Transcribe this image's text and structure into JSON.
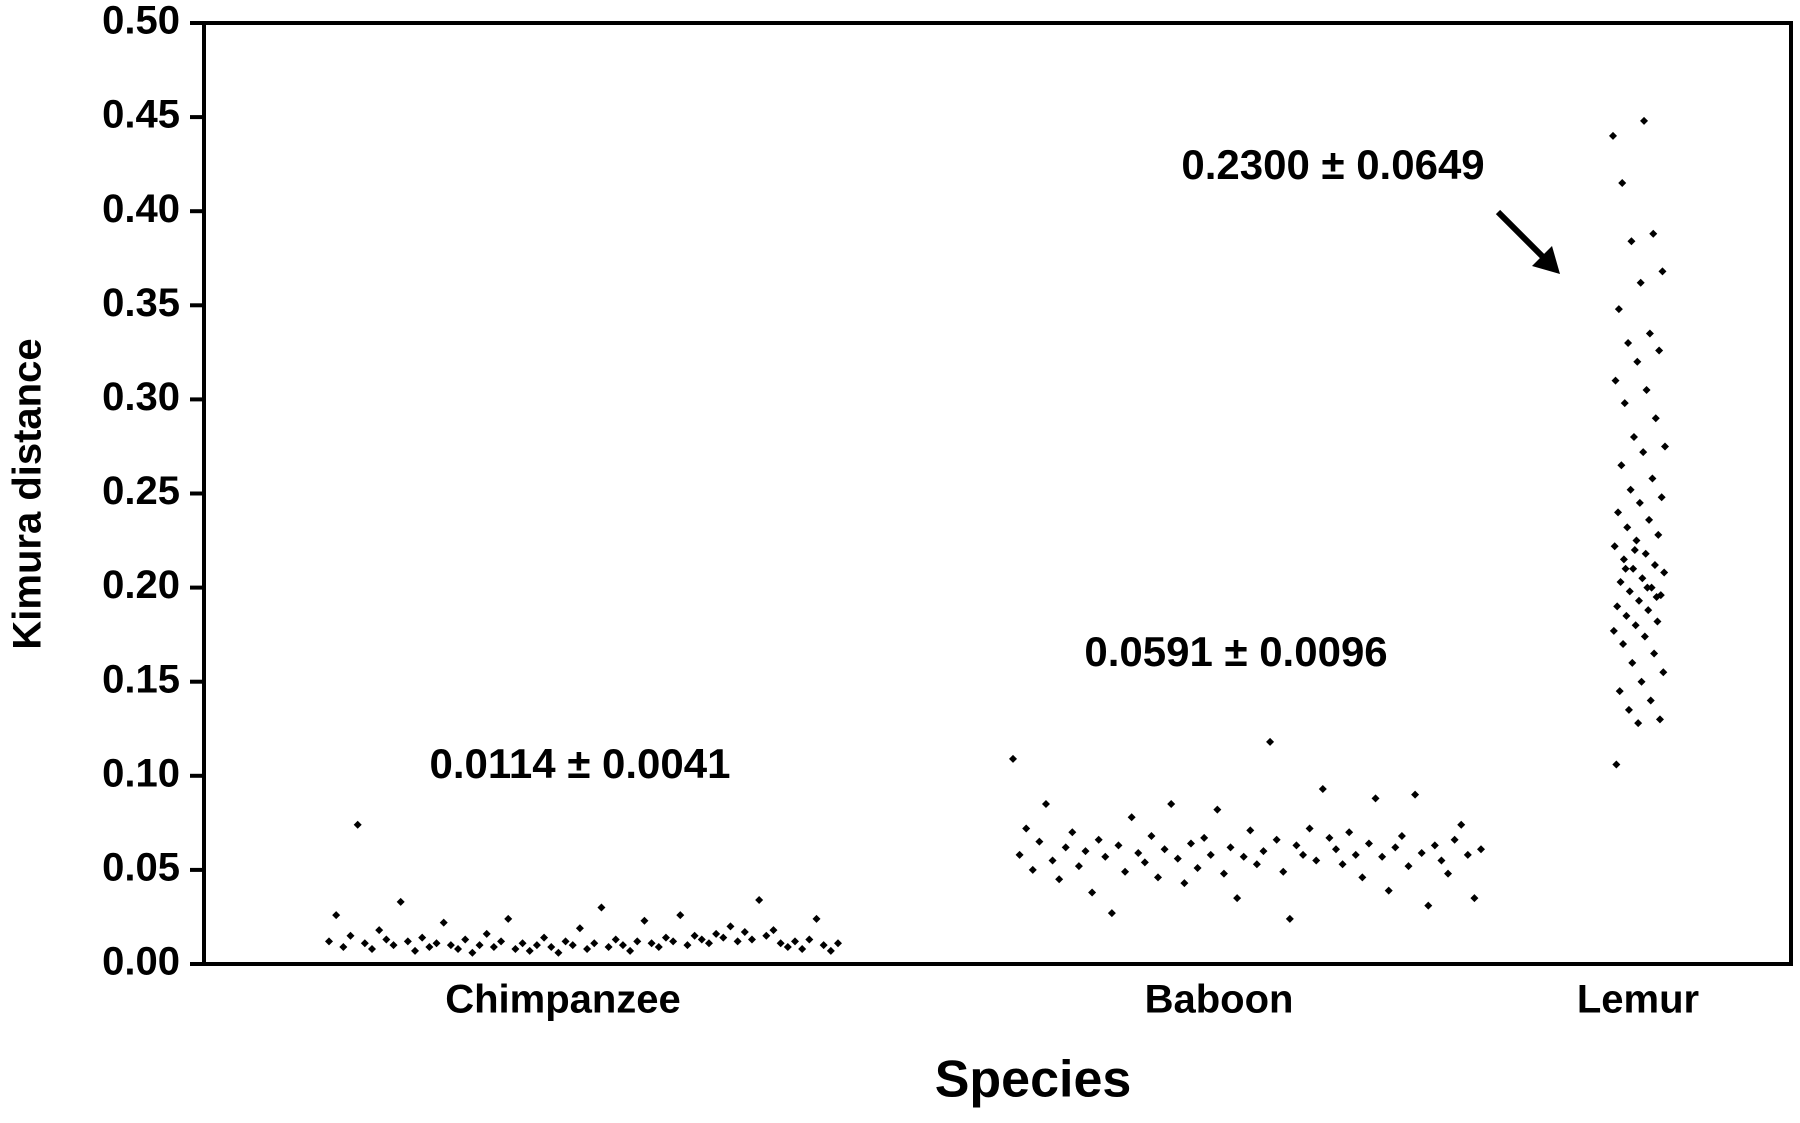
{
  "chart_data": {
    "type": "strip",
    "x_label": "Species",
    "y_label": "Kimura distance",
    "categories": [
      "Chimpanzee",
      "Baboon",
      "Lemur"
    ],
    "color": "#000000",
    "ylim": [
      0,
      0.5
    ],
    "yticks": [
      {
        "value": 0,
        "label": "0.00"
      },
      {
        "value": 0.05,
        "label": "0.05"
      },
      {
        "value": 0.1,
        "label": "0.10"
      },
      {
        "value": 0.15,
        "label": "0.15"
      },
      {
        "value": 0.2,
        "label": "0.20"
      },
      {
        "value": 0.25,
        "label": "0.25"
      },
      {
        "value": 0.3,
        "label": "0.30"
      },
      {
        "value": 0.35,
        "label": "0.35"
      },
      {
        "value": 0.4,
        "label": "0.40"
      },
      {
        "value": 0.45,
        "label": "0.45"
      },
      {
        "value": 0.5,
        "label": "0.50"
      }
    ],
    "annotations": [
      "0.0114 ± 0.0041",
      "0.0591 ± 0.0096",
      "0.2300 ± 0.0649"
    ],
    "values": [
      [
        0.012,
        0.026,
        0.009,
        0.015,
        0.074,
        0.011,
        0.008,
        0.018,
        0.013,
        0.01,
        0.033,
        0.012,
        0.007,
        0.014,
        0.009,
        0.011,
        0.022,
        0.01,
        0.008,
        0.013,
        0.006,
        0.01,
        0.016,
        0.009,
        0.012,
        0.024,
        0.008,
        0.011,
        0.007,
        0.01,
        0.014,
        0.009,
        0.006,
        0.012,
        0.01,
        0.019,
        0.008,
        0.011,
        0.03,
        0.009,
        0.013,
        0.01,
        0.007,
        0.012,
        0.023,
        0.011,
        0.009,
        0.014,
        0.012,
        0.026,
        0.01,
        0.015,
        0.013,
        0.011,
        0.016,
        0.014,
        0.02,
        0.012,
        0.017,
        0.013,
        0.034,
        0.015,
        0.018,
        0.011,
        0.009,
        0.012,
        0.008,
        0.013,
        0.024,
        0.01,
        0.007,
        0.011
      ],
      [
        0.109,
        0.058,
        0.072,
        0.05,
        0.065,
        0.085,
        0.055,
        0.045,
        0.062,
        0.07,
        0.052,
        0.06,
        0.038,
        0.066,
        0.057,
        0.027,
        0.063,
        0.049,
        0.078,
        0.059,
        0.054,
        0.068,
        0.046,
        0.061,
        0.085,
        0.056,
        0.043,
        0.064,
        0.051,
        0.067,
        0.058,
        0.082,
        0.048,
        0.062,
        0.035,
        0.057,
        0.071,
        0.053,
        0.06,
        0.118,
        0.066,
        0.049,
        0.024,
        0.063,
        0.058,
        0.072,
        0.055,
        0.093,
        0.067,
        0.061,
        0.053,
        0.07,
        0.058,
        0.046,
        0.064,
        0.088,
        0.057,
        0.039,
        0.062,
        0.068,
        0.052,
        0.09,
        0.059,
        0.031,
        0.063,
        0.055,
        0.048,
        0.066,
        0.074,
        0.058,
        0.035,
        0.061
      ],
      [
        0.44,
        0.448,
        0.415,
        0.388,
        0.384,
        0.368,
        0.362,
        0.348,
        0.335,
        0.33,
        0.326,
        0.32,
        0.31,
        0.305,
        0.298,
        0.29,
        0.28,
        0.275,
        0.272,
        0.265,
        0.258,
        0.252,
        0.248,
        0.245,
        0.24,
        0.236,
        0.232,
        0.228,
        0.225,
        0.222,
        0.218,
        0.215,
        0.212,
        0.21,
        0.208,
        0.205,
        0.203,
        0.2,
        0.198,
        0.196,
        0.193,
        0.19,
        0.188,
        0.185,
        0.182,
        0.18,
        0.177,
        0.174,
        0.17,
        0.165,
        0.16,
        0.155,
        0.15,
        0.145,
        0.14,
        0.135,
        0.13,
        0.128,
        0.106,
        0.2,
        0.21,
        0.195,
        0.22
      ]
    ]
  }
}
